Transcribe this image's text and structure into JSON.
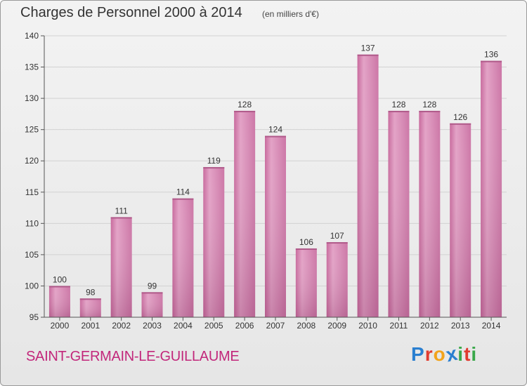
{
  "title": "Charges de Personnel 2000 à 2014",
  "subtitle": "(en milliers d'€)",
  "commune": "SAINT-GERMAIN-LE-GUILLAUME",
  "logo": {
    "letters": [
      "P",
      "r",
      "o",
      "x",
      "i",
      "t",
      "i"
    ],
    "colors": [
      "#2a7fd0",
      "#e03b2f",
      "#f2a31b",
      "#2a7fd0",
      "#3aa84a",
      "#e03b2f",
      "#3aa84a"
    ]
  },
  "chart_data": {
    "type": "bar",
    "title": "Charges de Personnel 2000 à 2014",
    "subtitle": "(en milliers d'€)",
    "categories": [
      "2000",
      "2001",
      "2002",
      "2003",
      "2004",
      "2005",
      "2006",
      "2007",
      "2008",
      "2009",
      "2010",
      "2011",
      "2012",
      "2013",
      "2014"
    ],
    "values": [
      100,
      98,
      111,
      99,
      114,
      119,
      128,
      124,
      106,
      107,
      137,
      128,
      128,
      126,
      136
    ],
    "ylim": [
      95,
      140
    ],
    "yticks": [
      95,
      100,
      105,
      110,
      115,
      120,
      125,
      130,
      135,
      140
    ],
    "grid": true,
    "bar_color": "#d67fae",
    "xlabel": "",
    "ylabel": ""
  }
}
